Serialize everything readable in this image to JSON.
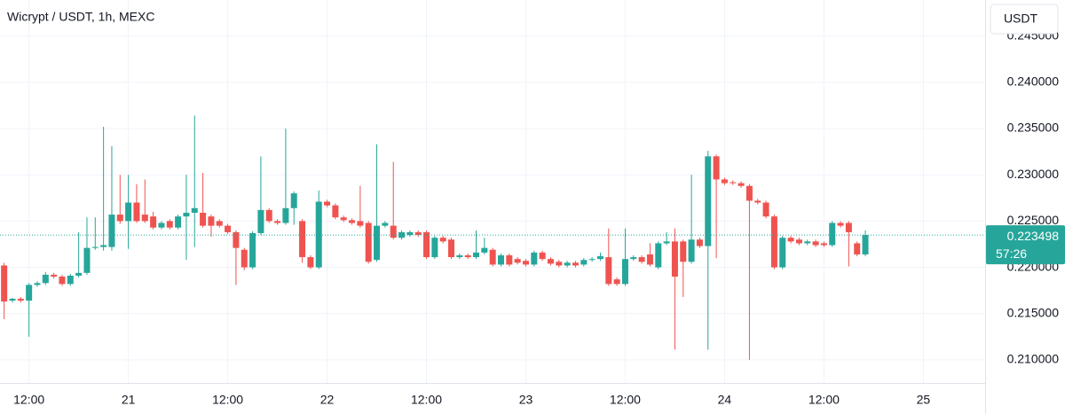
{
  "chart_data": {
    "type": "candlestick",
    "title": "Wicrypt / USDT, 1h, MEXC",
    "currency": "USDT",
    "categories": [
      null,
      null,
      null,
      "12:00",
      null,
      null,
      null,
      null,
      null,
      null,
      null,
      null,
      null,
      null,
      null,
      "21",
      null,
      null,
      null,
      null,
      null,
      null,
      null,
      null,
      null,
      null,
      null,
      "12:00",
      null,
      null,
      null,
      null,
      null,
      null,
      null,
      null,
      null,
      null,
      null,
      "22",
      null,
      null,
      null,
      null,
      null,
      null,
      null,
      null,
      null,
      null,
      null,
      "12:00",
      null,
      null,
      null,
      null,
      null,
      null,
      null,
      null,
      null,
      null,
      null,
      "23",
      null,
      null,
      null,
      null,
      null,
      null,
      null,
      null,
      null,
      null,
      null,
      "12:00",
      null,
      null,
      null,
      null,
      null,
      null,
      null,
      null,
      null,
      null,
      null,
      "24",
      null,
      null,
      null,
      null,
      null,
      null,
      null,
      null,
      null,
      null,
      null,
      "12:00",
      null,
      null,
      null,
      null,
      null,
      null,
      null,
      null,
      null,
      null,
      null,
      "25",
      null,
      null,
      null,
      null,
      null,
      null
    ],
    "open": [
      0.2202,
      0.2164,
      0.2166,
      0.2164,
      0.2181,
      0.2183,
      0.2192,
      0.219,
      0.2182,
      0.2191,
      0.2194,
      0.2221,
      0.2222,
      0.2222,
      0.2257,
      0.225,
      0.227,
      0.2257,
      0.2255,
      0.2243,
      0.225,
      0.2243,
      0.2255,
      0.2259,
      0.2259,
      0.2255,
      0.225,
      0.2245,
      0.2238,
      0.2219,
      0.22,
      0.2237,
      0.2262,
      0.225,
      0.2248,
      0.2264,
      0.225,
      0.2211,
      0.22,
      0.2271,
      0.2267,
      0.2254,
      0.2251,
      0.225,
      0.2248,
      0.2208,
      0.2245,
      0.2245,
      0.2232,
      0.2235,
      0.2238,
      0.2238,
      0.2211,
      0.2232,
      0.223,
      0.2211,
      0.2213,
      0.2211,
      0.2216,
      0.2219,
      0.2203,
      0.2213,
      0.2209,
      0.2207,
      0.2203,
      0.2216,
      0.2209,
      0.2206,
      0.2202,
      0.2205,
      0.2203,
      0.2208,
      0.2209,
      0.2211,
      0.2187,
      0.2182,
      0.2209,
      0.2211,
      0.2214,
      0.22,
      0.2226,
      0.2228,
      0.2228,
      0.2206,
      0.223,
      0.2223,
      0.232,
      0.2295,
      0.2292,
      0.2291,
      0.2288,
      0.2272,
      0.227,
      0.2255,
      0.22,
      0.2232,
      0.223,
      0.2226,
      0.2228,
      0.2226,
      0.2224,
      0.2248,
      0.2248,
      0.2226,
      0.2214,
      null,
      null,
      null,
      null,
      null,
      null,
      null,
      null,
      null,
      null,
      null,
      null,
      null
    ],
    "high": [
      0.2205,
      0.2167,
      0.2168,
      0.2183,
      0.2185,
      0.2195,
      0.2194,
      0.2192,
      0.2193,
      0.2238,
      0.2254,
      0.2254,
      0.2352,
      0.2331,
      0.23,
      0.23,
      0.229,
      0.2295,
      0.226,
      0.225,
      0.2252,
      0.2257,
      0.23,
      0.2364,
      0.2302,
      0.2257,
      0.2252,
      0.2247,
      0.224,
      0.2221,
      0.2239,
      0.232,
      0.2264,
      0.2252,
      0.235,
      0.2282,
      0.2252,
      0.2213,
      0.2283,
      0.2273,
      0.2269,
      0.2256,
      0.2253,
      0.2288,
      0.225,
      0.2333,
      0.225,
      0.2314,
      0.224,
      0.224,
      0.224,
      0.224,
      0.2234,
      0.2234,
      0.2232,
      0.2215,
      0.2215,
      0.224,
      0.2232,
      0.2221,
      0.2215,
      0.2215,
      0.2211,
      0.2209,
      0.2218,
      0.2218,
      0.2211,
      0.2208,
      0.2207,
      0.2207,
      0.221,
      0.2211,
      0.2216,
      0.2242,
      0.2189,
      0.2242,
      0.2213,
      0.2213,
      0.2226,
      0.2228,
      0.2238,
      0.2242,
      0.223,
      0.23,
      0.2232,
      0.2326,
      0.2322,
      0.2297,
      0.2294,
      0.2293,
      0.229,
      0.2274,
      0.2272,
      0.2257,
      0.2234,
      0.2234,
      0.2232,
      0.223,
      0.223,
      0.2228,
      0.225,
      0.225,
      0.225,
      0.2228,
      0.224,
      null,
      null,
      null,
      null,
      null,
      null,
      null,
      null,
      null,
      null,
      null,
      null,
      null
    ],
    "low": [
      0.2144,
      0.2162,
      0.2162,
      0.2125,
      0.2179,
      0.2181,
      0.2188,
      0.218,
      0.218,
      0.2189,
      0.2192,
      0.2219,
      0.2218,
      0.2218,
      0.2247,
      0.222,
      0.2248,
      0.2248,
      0.2241,
      0.2241,
      0.2241,
      0.2241,
      0.2208,
      0.2222,
      0.2243,
      0.2233,
      0.2243,
      0.2236,
      0.2181,
      0.2197,
      0.2198,
      0.2235,
      0.2248,
      0.2246,
      0.2246,
      0.2246,
      0.2205,
      0.2198,
      0.2198,
      0.2265,
      0.2252,
      0.2249,
      0.2246,
      0.2243,
      0.2204,
      0.2206,
      0.2243,
      0.223,
      0.223,
      0.2233,
      0.2233,
      0.2209,
      0.2209,
      0.2226,
      0.2209,
      0.2209,
      0.2209,
      0.2209,
      0.2214,
      0.2201,
      0.2201,
      0.2201,
      0.2203,
      0.2201,
      0.2201,
      0.2207,
      0.2202,
      0.22,
      0.22,
      0.22,
      0.2201,
      0.2206,
      0.2207,
      0.218,
      0.218,
      0.218,
      0.2207,
      0.2204,
      0.2201,
      0.2198,
      0.2224,
      0.2111,
      0.2168,
      0.2204,
      0.2221,
      0.2111,
      0.221,
      0.2289,
      0.2289,
      0.2286,
      0.21,
      0.2268,
      0.2253,
      0.2198,
      0.2198,
      0.2226,
      0.2224,
      0.2224,
      0.2222,
      0.2222,
      0.2222,
      0.2243,
      0.2201,
      0.2212,
      0.2212,
      null,
      null,
      null,
      null,
      null,
      null,
      null,
      null,
      null,
      null,
      null,
      null,
      null
    ],
    "close": [
      0.2163,
      0.2166,
      0.2164,
      0.2181,
      0.2183,
      0.2192,
      0.219,
      0.2182,
      0.2191,
      0.2194,
      0.2221,
      0.2222,
      0.2224,
      0.2257,
      0.225,
      0.227,
      0.225,
      0.225,
      0.2243,
      0.2248,
      0.2243,
      0.2255,
      0.2259,
      0.2264,
      0.2245,
      0.2245,
      0.2245,
      0.2238,
      0.2221,
      0.22,
      0.2237,
      0.2262,
      0.225,
      0.2248,
      0.2264,
      0.228,
      0.2211,
      0.22,
      0.2271,
      0.2267,
      0.2254,
      0.2251,
      0.2248,
      0.2245,
      0.2206,
      0.2245,
      0.2248,
      0.2232,
      0.2238,
      0.2238,
      0.2235,
      0.2211,
      0.2232,
      0.2228,
      0.2211,
      0.2213,
      0.2211,
      0.2216,
      0.2221,
      0.2203,
      0.2213,
      0.2203,
      0.2205,
      0.2203,
      0.2216,
      0.2209,
      0.2204,
      0.2202,
      0.2205,
      0.2202,
      0.2208,
      0.2209,
      0.2212,
      0.2182,
      0.2182,
      0.2209,
      0.2211,
      0.2206,
      0.2203,
      0.2226,
      0.2228,
      0.219,
      0.2206,
      0.223,
      0.2223,
      0.232,
      0.2295,
      0.2291,
      0.2291,
      0.2288,
      0.2272,
      0.227,
      0.2255,
      0.22,
      0.2232,
      0.2228,
      0.2226,
      0.2228,
      0.2224,
      0.2224,
      0.2248,
      0.2245,
      0.2238,
      0.2214,
      0.2235,
      null,
      null,
      null,
      null,
      null,
      null,
      null,
      null,
      null,
      null,
      null,
      null,
      null
    ],
    "up_color": "#26a69a",
    "down_color": "#ef5350",
    "last_price": 0.223498,
    "countdown": "57:26",
    "ylim": [
      0.2075,
      0.2489
    ],
    "yticks": [
      {
        "value": 0.21,
        "label": "0.210000"
      },
      {
        "value": 0.215,
        "label": "0.215000"
      },
      {
        "value": 0.22,
        "label": "0.220000"
      },
      {
        "value": 0.225,
        "label": "0.225000"
      },
      {
        "value": 0.23,
        "label": "0.230000"
      },
      {
        "value": 0.235,
        "label": "0.235000"
      },
      {
        "value": 0.24,
        "label": "0.240000"
      },
      {
        "value": 0.245,
        "label": "0.245000"
      }
    ],
    "grid": true
  }
}
